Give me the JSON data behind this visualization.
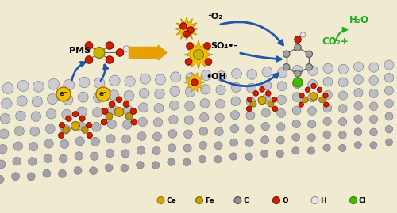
{
  "background_color": "#f0ead0",
  "legend_items": [
    {
      "label": "Ce",
      "color": "#d4a800",
      "edge": "#a07800"
    },
    {
      "label": "Fe",
      "color": "#c8a000",
      "edge": "#806000"
    },
    {
      "label": "C",
      "color": "#909090",
      "edge": "#505050"
    },
    {
      "label": "O",
      "color": "#cc2200",
      "edge": "#880000"
    },
    {
      "label": "H",
      "color": "#e8e8e8",
      "edge": "#909090"
    },
    {
      "label": "Cl",
      "color": "#44bb00",
      "edge": "#228800"
    }
  ],
  "pms_text": "PMS",
  "so4_text": "SO₄•-",
  "oh_text": "•OH",
  "o2_text": "¹O₂",
  "co2_text": "CO₂+",
  "h2o_text": "H₂O",
  "e1_text": "e⁻",
  "e2_text": "e⁻",
  "arrow_color_orange": "#e8a000",
  "arrow_color_blue": "#2255aa",
  "arrow_color_green": "#22aa22",
  "burst_color": "#f0c000",
  "burst_edge": "#c09000",
  "red_atom": "#cc2200",
  "yellow_atom_ce": "#d4a800",
  "yellow_atom_fe": "#b8960a",
  "green_atom_cl": "#44bb00",
  "white_atom_h": "#e8e8e8",
  "gray_atom_c": "#a0a0a0",
  "graphene_color_top": "#c8c8c8",
  "graphene_color_bot": "#a0a8b8",
  "graphene_edge": "#707070"
}
